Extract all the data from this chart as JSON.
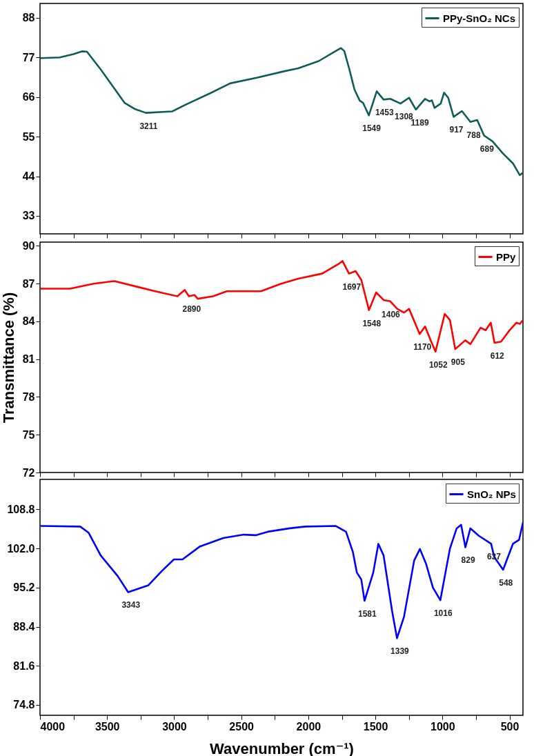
{
  "chart_data": [
    {
      "type": "line",
      "xlim": [
        4000,
        400
      ],
      "xticks": [
        4000,
        {
          "value": 3750,
          "label": null
        },
        3500,
        {
          "value": 3250,
          "label": null
        },
        3000,
        {
          "value": 2750,
          "label": null
        },
        2500,
        {
          "value": 2250,
          "label": null
        },
        2000,
        {
          "value": 1750,
          "label": null
        },
        1500,
        {
          "value": 1250,
          "label": null
        },
        1000,
        {
          "value": 750,
          "label": null
        },
        500
      ],
      "ylim": [
        28,
        92
      ],
      "yticks": [
        33,
        44,
        55,
        66,
        77,
        88
      ],
      "tick_labels": "y",
      "legend": "top right",
      "grid": false,
      "series": [
        {
          "name": "PPy-SnO₂ NCs",
          "color": "#0e5c57",
          "x": [
            3992,
            3853,
            3751,
            3688,
            3650,
            3548,
            3370,
            3294,
            3211,
            3015,
            2913,
            2735,
            2583,
            2380,
            2176,
            2075,
            1922,
            1795,
            1757,
            1732,
            1694,
            1656,
            1617,
            1592,
            1549,
            1490,
            1439,
            1389,
            1313,
            1249,
            1198,
            1130,
            1097,
            1079,
            1059,
            1013,
            988,
            957,
            917,
            855,
            792,
            741,
            690,
            627,
            551,
            475,
            424,
            400
          ],
          "values": [
            76.8,
            77.0,
            77.9,
            78.7,
            78.6,
            73.7,
            64.4,
            62.7,
            61.6,
            62.0,
            63.9,
            67.0,
            69.8,
            71.4,
            73.2,
            74.0,
            76.0,
            78.8,
            79.6,
            78.8,
            73.7,
            68.1,
            65.0,
            64.4,
            60.9,
            67.6,
            65.3,
            65.5,
            64.2,
            65.8,
            62.5,
            65.5,
            64.8,
            65.1,
            63.0,
            64.2,
            67.2,
            65.8,
            60.5,
            62.1,
            59.1,
            59.6,
            55.3,
            53.7,
            50.4,
            47.6,
            44.3,
            45.0
          ]
        }
      ],
      "annotations": [
        {
          "text": "3211",
          "x": 3211,
          "y": 61.6
        },
        {
          "text": "1549",
          "x": 1549,
          "y": 60.9
        },
        {
          "text": "1453",
          "x": 1453,
          "y": 65.3
        },
        {
          "text": "1308",
          "x": 1308,
          "y": 64.2
        },
        {
          "text": "1189",
          "x": 1189,
          "y": 62.5
        },
        {
          "text": "917",
          "x": 917,
          "y": 60.5
        },
        {
          "text": "788",
          "x": 788,
          "y": 59.1
        },
        {
          "text": "689",
          "x": 689,
          "y": 55.3
        }
      ]
    },
    {
      "type": "line",
      "ylabel": "Transmittance (%)",
      "xlim": [
        4000,
        400
      ],
      "xticks": [
        4000,
        {
          "value": 3750,
          "label": null
        },
        3500,
        {
          "value": 3250,
          "label": null
        },
        3000,
        {
          "value": 2750,
          "label": null
        },
        2500,
        {
          "value": 2250,
          "label": null
        },
        2000,
        {
          "value": 1750,
          "label": null
        },
        1500,
        {
          "value": 1250,
          "label": null
        },
        1000,
        {
          "value": 750,
          "label": null
        },
        500
      ],
      "ylim": [
        72,
        90.3
      ],
      "yticks": [
        72,
        75,
        78,
        81,
        84,
        87,
        90
      ],
      "tick_labels": "y",
      "legend": "top right",
      "grid": false,
      "series": [
        {
          "name": "PPy",
          "color": "#ff0000",
          "x": [
            3992,
            3776,
            3599,
            3446,
            3294,
            3141,
            2976,
            2921,
            2890,
            2849,
            2824,
            2710,
            2608,
            2354,
            2202,
            2075,
            1897,
            1770,
            1745,
            1697,
            1648,
            1605,
            1548,
            1494,
            1439,
            1389,
            1338,
            1287,
            1249,
            1170,
            1130,
            1084,
            1052,
            983,
            944,
            905,
            830,
            792,
            716,
            678,
            640,
            612,
            563,
            500,
            449,
            424,
            400
          ],
          "values": [
            86.6,
            86.6,
            87.0,
            87.2,
            86.8,
            86.4,
            86.0,
            86.5,
            86.0,
            86.1,
            85.8,
            86.0,
            86.4,
            86.4,
            87.0,
            87.4,
            87.8,
            88.6,
            88.8,
            87.8,
            88.0,
            87.3,
            84.9,
            86.3,
            85.7,
            85.6,
            85.0,
            84.7,
            85.0,
            83.0,
            83.6,
            82.4,
            81.6,
            84.6,
            84.1,
            81.8,
            82.5,
            82.2,
            83.5,
            83.3,
            83.9,
            82.3,
            82.4,
            83.3,
            83.9,
            83.8,
            84.1
          ]
        }
      ],
      "annotations": [
        {
          "text": "2890",
          "x": 2890,
          "y": 86.0
        },
        {
          "text": "1697",
          "x": 1697,
          "y": 87.8
        },
        {
          "text": "1548",
          "x": 1548,
          "y": 84.9
        },
        {
          "text": "1406",
          "x": 1406,
          "y": 85.6
        },
        {
          "text": "1170",
          "x": 1170,
          "y": 83.0
        },
        {
          "text": "1052",
          "x": 1052,
          "y": 81.6
        },
        {
          "text": "905",
          "x": 905,
          "y": 81.8
        },
        {
          "text": "612",
          "x": 612,
          "y": 82.3
        }
      ]
    },
    {
      "type": "line",
      "xlabel": "Wavenumber (cm⁻¹)",
      "xlim": [
        4000,
        400
      ],
      "xticks": [
        4000,
        {
          "value": 3750,
          "label": null
        },
        3500,
        {
          "value": 3250,
          "label": null
        },
        3000,
        {
          "value": 2750,
          "label": null
        },
        2500,
        {
          "value": 2250,
          "label": null
        },
        2000,
        {
          "value": 1750,
          "label": null
        },
        1500,
        {
          "value": 1250,
          "label": null
        },
        1000,
        {
          "value": 750,
          "label": null
        },
        500
      ],
      "ylim": [
        73,
        114
      ],
      "yticks": [
        74.8,
        81.6,
        88.4,
        95.2,
        {
          "value": 102,
          "label": "102.0"
        },
        108.8
      ],
      "legend": "top right",
      "grid": false,
      "series": [
        {
          "name": "SnO₂ NPs",
          "color": "#0000ff",
          "x": [
            3992,
            3700,
            3637,
            3548,
            3421,
            3343,
            3192,
            3091,
            3002,
            2938,
            2811,
            2634,
            2481,
            2392,
            2303,
            2138,
            2024,
            1795,
            1719,
            1668,
            1638,
            1605,
            1581,
            1516,
            1478,
            1439,
            1376,
            1339,
            1287,
            1211,
            1168,
            1122,
            1071,
            1016,
            944,
            894,
            861,
            829,
            792,
            729,
            637,
            614,
            548,
            475,
            429,
            400
          ],
          "values": [
            105.9,
            105.8,
            104.7,
            100.8,
            97.2,
            94.4,
            95.6,
            98.1,
            100.1,
            100.1,
            102.3,
            103.8,
            104.4,
            104.3,
            104.9,
            105.5,
            105.8,
            105.9,
            104.9,
            101.4,
            97.8,
            96.6,
            92.9,
            97.8,
            102.8,
            100.8,
            91.2,
            86.4,
            90.1,
            99.9,
            101.9,
            99.3,
            95.2,
            93.0,
            102.0,
            105.5,
            106.1,
            102.2,
            105.5,
            104.2,
            102.8,
            100.5,
            98.3,
            102.8,
            103.5,
            106.5
          ]
        }
      ],
      "annotations": [
        {
          "text": "3343",
          "x": 3343,
          "y": 94.4
        },
        {
          "text": "1581",
          "x": 1581,
          "y": 92.9
        },
        {
          "text": "1339",
          "x": 1339,
          "y": 86.4
        },
        {
          "text": "1016",
          "x": 1016,
          "y": 93.0
        },
        {
          "text": "829",
          "x": 829,
          "y": 102.2
        },
        {
          "text": "637",
          "x": 637,
          "y": 102.8
        },
        {
          "text": "548",
          "x": 548,
          "y": 98.3
        }
      ]
    }
  ]
}
